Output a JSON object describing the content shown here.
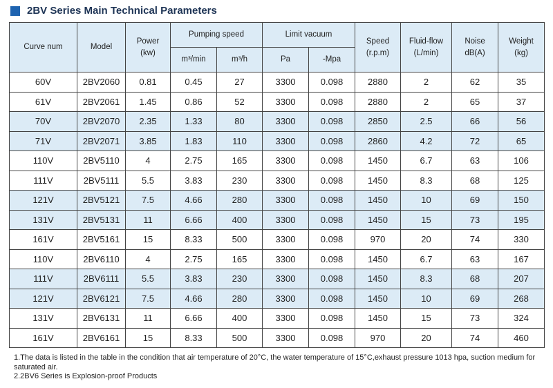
{
  "title": "2BV Series Main Technical Parameters",
  "headers": {
    "curve": "Curve num",
    "model": "Model",
    "power": "Power",
    "power_unit": "(kw)",
    "pumping": "Pumping speed",
    "m3min": "m³/min",
    "m3h": "m³/h",
    "vacuum": "Limit vacuum",
    "pa": "Pa",
    "mpa": "-Mpa",
    "speed": "Speed",
    "speed_unit": "(r.p.m)",
    "fluid": "Fluid-flow",
    "fluid_unit": "(L/min)",
    "noise": "Noise",
    "noise_unit": "dB(A)",
    "weight": "Weight",
    "weight_unit": "(kg)"
  },
  "rows": [
    [
      "60V",
      "2BV2060",
      "0.81",
      "0.45",
      "27",
      "3300",
      "0.098",
      "2880",
      "2",
      "62",
      "35"
    ],
    [
      "61V",
      "2BV2061",
      "1.45",
      "0.86",
      "52",
      "3300",
      "0.098",
      "2880",
      "2",
      "65",
      "37"
    ],
    [
      "70V",
      "2BV2070",
      "2.35",
      "1.33",
      "80",
      "3300",
      "0.098",
      "2850",
      "2.5",
      "66",
      "56"
    ],
    [
      "71V",
      "2BV2071",
      "3.85",
      "1.83",
      "110",
      "3300",
      "0.098",
      "2860",
      "4.2",
      "72",
      "65"
    ],
    [
      "110V",
      "2BV5110",
      "4",
      "2.75",
      "165",
      "3300",
      "0.098",
      "1450",
      "6.7",
      "63",
      "106"
    ],
    [
      "111V",
      "2BV5111",
      "5.5",
      "3.83",
      "230",
      "3300",
      "0.098",
      "1450",
      "8.3",
      "68",
      "125"
    ],
    [
      "121V",
      "2BV5121",
      "7.5",
      "4.66",
      "280",
      "3300",
      "0.098",
      "1450",
      "10",
      "69",
      "150"
    ],
    [
      "131V",
      "2BV5131",
      "11",
      "6.66",
      "400",
      "3300",
      "0.098",
      "1450",
      "15",
      "73",
      "195"
    ],
    [
      "161V",
      "2BV5161",
      "15",
      "8.33",
      "500",
      "3300",
      "0.098",
      "970",
      "20",
      "74",
      "330"
    ],
    [
      "110V",
      "2BV6110",
      "4",
      "2.75",
      "165",
      "3300",
      "0.098",
      "1450",
      "6.7",
      "63",
      "167"
    ],
    [
      "111V",
      "2BV6111",
      "5.5",
      "3.83",
      "230",
      "3300",
      "0.098",
      "1450",
      "8.3",
      "68",
      "207"
    ],
    [
      "121V",
      "2BV6121",
      "7.5",
      "4.66",
      "280",
      "3300",
      "0.098",
      "1450",
      "10",
      "69",
      "268"
    ],
    [
      "131V",
      "2BV6131",
      "11",
      "6.66",
      "400",
      "3300",
      "0.098",
      "1450",
      "15",
      "73",
      "324"
    ],
    [
      "161V",
      "2BV6161",
      "15",
      "8.33",
      "500",
      "3300",
      "0.098",
      "970",
      "20",
      "74",
      "460"
    ]
  ],
  "notes": [
    "1.The data is listed in the table in the condition that air temperature of 20°C, the water temperature of 15°C,exhaust pressure 1013 hpa, suction medium for saturated air.",
    "2.2BV6 Series is Explosion-proof Products"
  ],
  "colors": {
    "header_bg": "#dcebf6",
    "title_square": "#1e63b0",
    "title_text": "#1f3556"
  }
}
